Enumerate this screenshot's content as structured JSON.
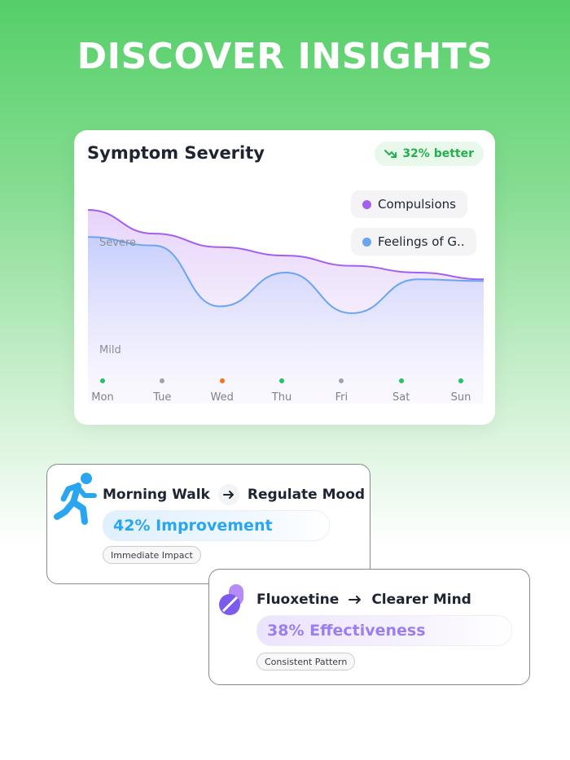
{
  "headline": "DISCOVER INSIGHTS",
  "card": {
    "title": "Symptom Severity",
    "badge": "32% better",
    "y_labels": {
      "top": "Severe",
      "bottom": "Mild"
    },
    "legend": [
      {
        "label": "Compulsions",
        "color": "#a45ef0"
      },
      {
        "label": "Feelings of G..",
        "color": "#6aa4f5"
      }
    ],
    "days": [
      {
        "label": "Mon",
        "dot_color": "#22c55e"
      },
      {
        "label": "Tue",
        "dot_color": "#9ca3af"
      },
      {
        "label": "Wed",
        "dot_color": "#f97316"
      },
      {
        "label": "Thu",
        "dot_color": "#22c55e"
      },
      {
        "label": "Fri",
        "dot_color": "#9ca3af"
      },
      {
        "label": "Sat",
        "dot_color": "#22c55e"
      },
      {
        "label": "Sun",
        "dot_color": "#22c55e"
      }
    ]
  },
  "insights": [
    {
      "from": "Morning Walk",
      "to": "Regulate Mood",
      "result": "42% Improvement",
      "result_color": "#2aa6f0",
      "tag": "Immediate Impact",
      "icon": "running-person-icon"
    },
    {
      "from": "Fluoxetine",
      "to": "Clearer Mind",
      "result": "38% Effectiveness",
      "result_color": "#9b7ef0",
      "tag": "Consistent Pattern",
      "icon": "pill-icon"
    }
  ],
  "chart_data": {
    "type": "area",
    "x": [
      "Mon",
      "Tue",
      "Wed",
      "Thu",
      "Fri",
      "Sat",
      "Sun"
    ],
    "ylim": [
      0,
      1
    ],
    "series": [
      {
        "name": "Compulsions",
        "values": [
          1.0,
          0.86,
          0.78,
          0.73,
          0.67,
          0.63,
          0.59
        ]
      },
      {
        "name": "Feelings of G..",
        "values": [
          0.84,
          0.79,
          0.43,
          0.63,
          0.39,
          0.59,
          0.58
        ]
      }
    ]
  }
}
